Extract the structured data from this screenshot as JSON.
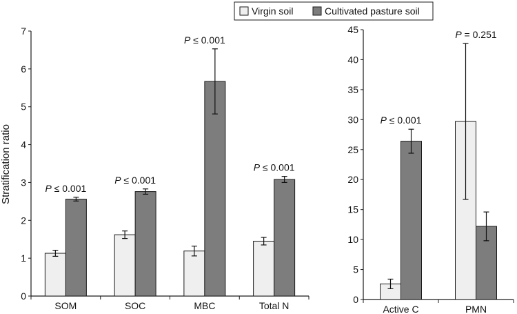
{
  "legend": {
    "series_names": [
      "Virgin soil",
      "Cultivated pasture soil"
    ],
    "placement": "top-center, boxed"
  },
  "colors": {
    "virgin": "#efefef",
    "cultivated": "#7d7d7d",
    "stroke": "#1a1a1a"
  },
  "chart_data": [
    {
      "type": "bar",
      "categories": [
        "SOM",
        "SOC",
        "MBC",
        "Total N"
      ],
      "ylabel": "Stratification ratio",
      "ylim": [
        0,
        7
      ],
      "yticks": [
        0,
        1,
        2,
        3,
        4,
        5,
        6,
        7
      ],
      "grid": false,
      "series": [
        {
          "name": "Virgin soil",
          "values": [
            1.13,
            1.62,
            1.19,
            1.45
          ],
          "errors": [
            0.08,
            0.1,
            0.13,
            0.1
          ]
        },
        {
          "name": "Cultivated pasture soil",
          "values": [
            2.56,
            2.76,
            5.67,
            3.08
          ],
          "errors": [
            0.05,
            0.07,
            0.86,
            0.08
          ]
        }
      ],
      "annotations": [
        "P ≤ 0.001",
        "P ≤ 0.001",
        "P ≤ 0.001",
        "P ≤ 0.001"
      ]
    },
    {
      "type": "bar",
      "categories": [
        "Active C",
        "PMN"
      ],
      "ylabel": "",
      "ylim": [
        0,
        45
      ],
      "yticks": [
        0,
        5,
        10,
        15,
        20,
        25,
        30,
        35,
        40,
        45
      ],
      "grid": false,
      "series": [
        {
          "name": "Virgin soil",
          "values": [
            2.6,
            29.7
          ],
          "errors": [
            0.8,
            13.0
          ]
        },
        {
          "name": "Cultivated pasture soil",
          "values": [
            26.4,
            12.2
          ],
          "errors": [
            2.0,
            2.4
          ]
        }
      ],
      "annotations": [
        "P ≤ 0.001",
        "P = 0.251"
      ]
    }
  ]
}
